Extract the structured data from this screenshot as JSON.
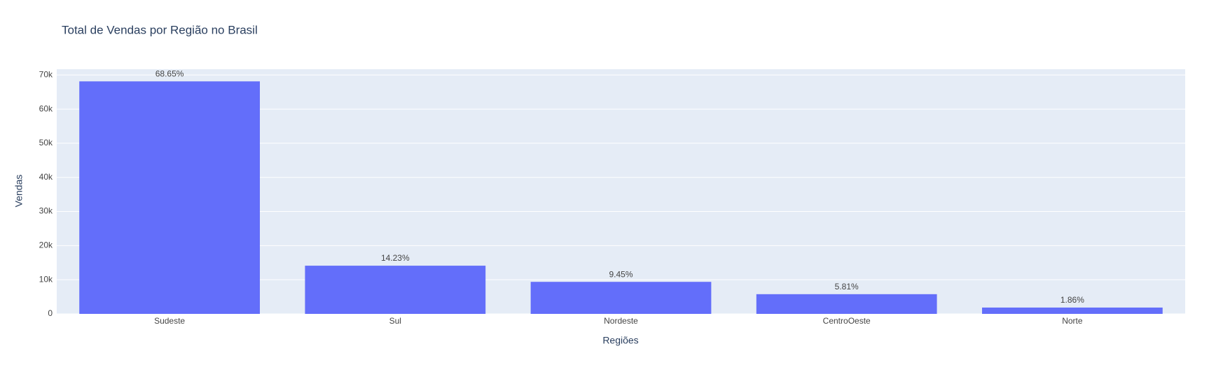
{
  "chart_data": {
    "type": "bar",
    "title": "Total de Vendas por Região no Brasil",
    "x_label": "Regiões",
    "y_label": "Vendas",
    "categories": [
      "Sudeste",
      "Sul",
      "Nordeste",
      "CentroOeste",
      "Norte"
    ],
    "values": [
      68140,
      14120,
      9380,
      5770,
      1850
    ],
    "text_labels": [
      "68.65%",
      "14.23%",
      "9.45%",
      "5.81%",
      "1.86%"
    ],
    "color": "#636efa",
    "ylim": [
      0,
      71700
    ],
    "yticks": [
      0,
      {
        "value": 10000,
        "label": "10k"
      },
      {
        "value": 20000,
        "label": "20k"
      },
      {
        "value": 30000,
        "label": "30k"
      },
      {
        "value": 40000,
        "label": "40k"
      },
      {
        "value": 50000,
        "label": "50k"
      },
      {
        "value": 60000,
        "label": "60k"
      },
      {
        "value": 70000,
        "label": "70k"
      }
    ],
    "grid": true
  }
}
